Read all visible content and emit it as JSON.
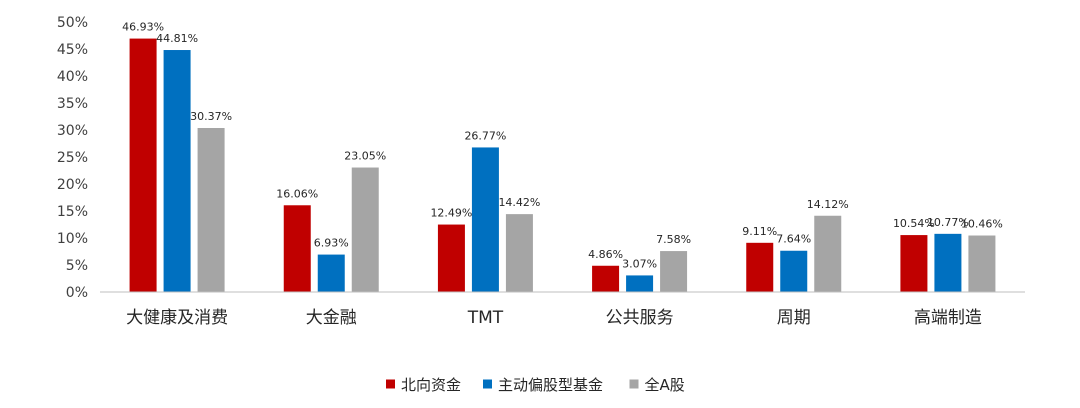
{
  "chart_data": {
    "type": "bar",
    "categories": [
      "大健康及消费",
      "大金融",
      "TMT",
      "公共服务",
      "周期",
      "高端制造"
    ],
    "series": [
      {
        "name": "北向资金",
        "color": "#C00000",
        "values": [
          46.93,
          16.06,
          12.49,
          4.86,
          9.11,
          10.54
        ],
        "labels": [
          "46.93%",
          "16.06%",
          "12.49%",
          "4.86%",
          "9.11%",
          "10.54%"
        ]
      },
      {
        "name": "主动偏股型基金",
        "color": "#0070C0",
        "values": [
          44.81,
          6.93,
          26.77,
          3.07,
          7.64,
          10.77
        ],
        "labels": [
          "44.81%",
          "6.93%",
          "26.77%",
          "3.07%",
          "7.64%",
          "10.77%"
        ]
      },
      {
        "name": "全A股",
        "color": "#A5A5A5",
        "values": [
          30.37,
          23.05,
          14.42,
          7.58,
          14.12,
          10.46
        ],
        "labels": [
          "30.37%",
          "23.05%",
          "14.42%",
          "7.58%",
          "14.12%",
          "10.46%"
        ]
      }
    ],
    "ylim": [
      0,
      50
    ],
    "yticks": [
      0,
      5,
      10,
      15,
      20,
      25,
      30,
      35,
      40,
      45,
      50
    ],
    "ytick_labels": [
      "0%",
      "5%",
      "10%",
      "15%",
      "20%",
      "25%",
      "30%",
      "35%",
      "40%",
      "45%",
      "50%"
    ],
    "grid": false,
    "legend_position": "bottom"
  }
}
